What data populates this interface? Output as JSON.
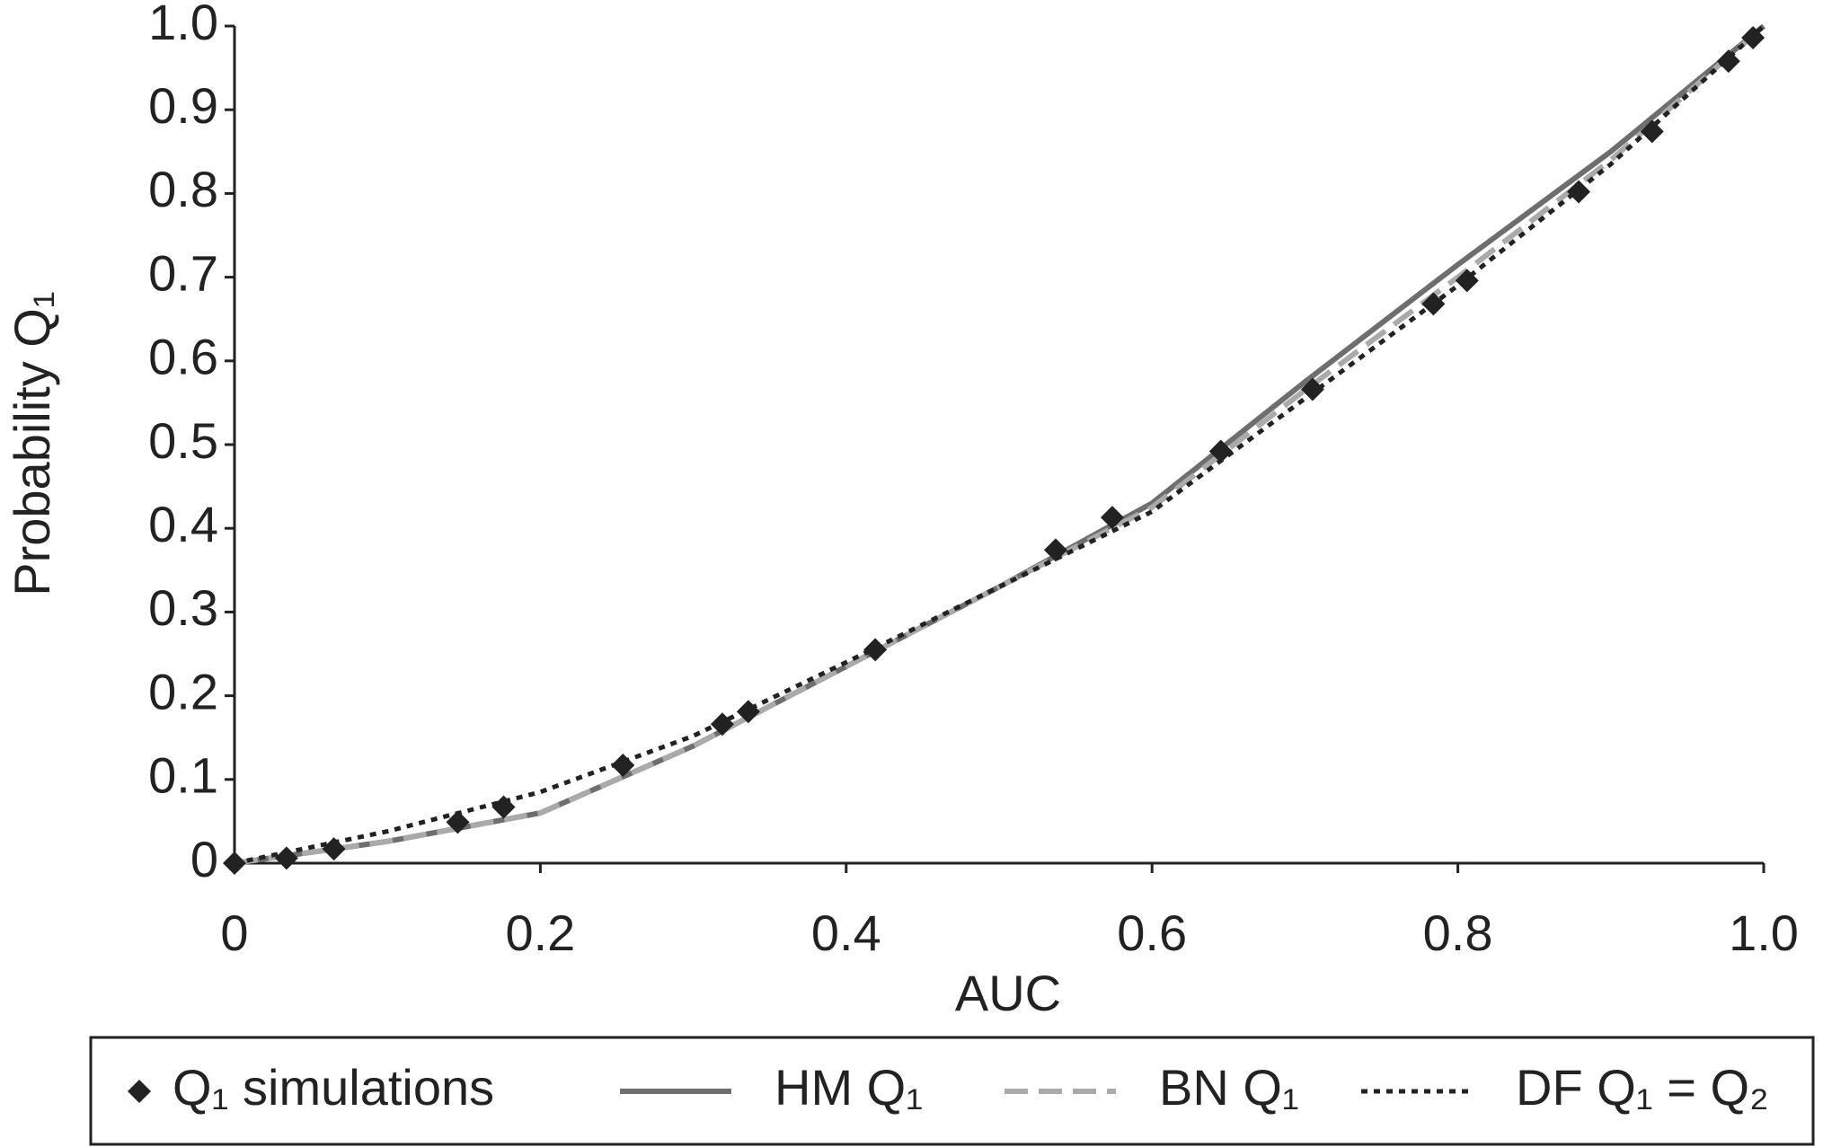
{
  "chart_data": {
    "type": "line",
    "x_label": "AUC",
    "y_label": "Probability Q₁",
    "xlim": [
      0,
      1
    ],
    "ylim": [
      0,
      1
    ],
    "xticks": [
      0,
      0.2,
      0.4,
      0.6,
      0.8,
      {
        "value": 1,
        "label": "1.0"
      }
    ],
    "yticks": [
      0,
      0.1,
      0.2,
      0.3,
      0.4,
      0.5,
      0.6,
      0.7,
      0.8,
      0.9,
      {
        "value": 1,
        "label": "1.0"
      }
    ],
    "series": [
      {
        "name": "Q₁ simulations",
        "color": "#222222",
        "style": "marker",
        "x": [
          0,
          0.034,
          0.065,
          0.146,
          0.176,
          0.254,
          0.319,
          0.336,
          0.419,
          0.537,
          0.574,
          0.645,
          0.705,
          0.784,
          0.806,
          0.879,
          0.927,
          0.977,
          0.993
        ],
        "values": [
          0,
          0.006,
          0.017,
          0.049,
          0.067,
          0.117,
          0.166,
          0.181,
          0.255,
          0.374,
          0.413,
          0.492,
          0.566,
          0.668,
          0.696,
          0.802,
          0.874,
          0.958,
          0.986
        ]
      },
      {
        "name": "HM Q₁",
        "color": "#6e6e6e",
        "style": "solid",
        "x": [
          0,
          0.1,
          0.2,
          0.3,
          0.4,
          0.5,
          0.6,
          0.7,
          0.8,
          0.9,
          1
        ],
        "values": [
          0,
          0.026,
          0.06,
          0.14,
          0.235,
          0.33,
          0.43,
          0.575,
          0.715,
          0.85,
          1
        ]
      },
      {
        "name": "BN Q₁",
        "color": "#aaaaaa",
        "style": "dashed",
        "x": [
          0,
          0.1,
          0.2,
          0.3,
          0.4,
          0.5,
          0.6,
          0.7,
          0.8,
          0.9,
          1
        ],
        "values": [
          0,
          0.026,
          0.06,
          0.14,
          0.235,
          0.33,
          0.425,
          0.565,
          0.7,
          0.84,
          1
        ]
      },
      {
        "name": "DF Q₁ = Q₂",
        "color": "#222222",
        "style": "dotted",
        "x": [
          0,
          0.1,
          0.2,
          0.3,
          0.4,
          0.5,
          0.6,
          0.7,
          0.8,
          0.9,
          1
        ],
        "values": [
          0,
          0.038,
          0.085,
          0.152,
          0.24,
          0.33,
          0.42,
          0.555,
          0.69,
          0.835,
          1
        ]
      }
    ]
  }
}
